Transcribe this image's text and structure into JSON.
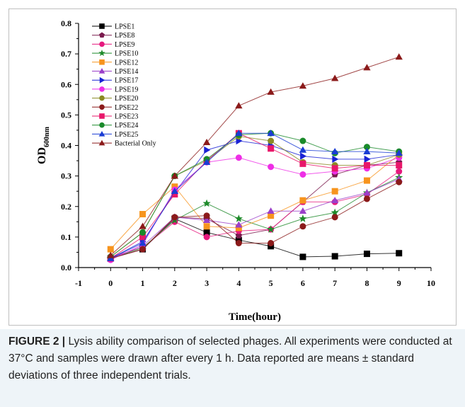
{
  "figure": {
    "caption_label": "FIGURE 2 |",
    "caption_text": " Lysis ability comparison of selected phages. All experiments were conducted at 37°C and samples were drawn after every 1 h. Data reported are means ± standard deviations of three independent trials."
  },
  "chart_data": {
    "type": "line",
    "xlabel": "Time(hour)",
    "ylabel": "OD",
    "ylabel_subscript": "600nm",
    "xlim": [
      -1,
      10
    ],
    "ylim": [
      0.0,
      0.8
    ],
    "x_ticks": [
      "-1",
      "0",
      "1",
      "2",
      "3",
      "4",
      "5",
      "6",
      "7",
      "8",
      "9",
      "10"
    ],
    "y_ticks": [
      "0.0",
      "0.1",
      "0.2",
      "0.3",
      "0.4",
      "0.5",
      "0.6",
      "0.7",
      "0.8"
    ],
    "grid": false,
    "legend_position": "top-left",
    "x": [
      0,
      1,
      2,
      3,
      4,
      5,
      6,
      7,
      8,
      9
    ],
    "series": [
      {
        "name": "LPSE1",
        "color": "#000000",
        "marker": "square",
        "values": [
          0.03,
          0.06,
          0.16,
          0.115,
          0.09,
          0.07,
          0.035,
          0.037,
          0.045,
          0.047
        ]
      },
      {
        "name": "LPSE8",
        "color": "#7a1a4d",
        "marker": "pentagon",
        "values": [
          0.03,
          0.06,
          0.165,
          0.16,
          0.105,
          0.125,
          0.215,
          0.305,
          0.335,
          0.345
        ]
      },
      {
        "name": "LPSE9",
        "color": "#e6197e",
        "marker": "circle",
        "values": [
          0.035,
          0.065,
          0.15,
          0.1,
          0.12,
          0.125,
          0.215,
          0.215,
          0.24,
          0.315
        ]
      },
      {
        "name": "LPSE10",
        "color": "#1e8a2a",
        "marker": "star",
        "values": [
          0.03,
          0.065,
          0.155,
          0.21,
          0.16,
          0.125,
          0.16,
          0.18,
          0.245,
          0.295
        ]
      },
      {
        "name": "LPSE12",
        "color": "#f7941d",
        "marker": "square",
        "values": [
          0.06,
          0.175,
          0.265,
          0.135,
          0.13,
          0.17,
          0.22,
          0.25,
          0.285,
          0.37
        ]
      },
      {
        "name": "LPSE14",
        "color": "#9b3fc9",
        "marker": "triangle-up",
        "values": [
          0.03,
          0.07,
          0.165,
          0.155,
          0.14,
          0.185,
          0.185,
          0.22,
          0.245,
          0.29
        ]
      },
      {
        "name": "LPSE17",
        "color": "#1a22d4",
        "marker": "triangle-right",
        "values": [
          0.03,
          0.085,
          0.245,
          0.385,
          0.415,
          0.4,
          0.365,
          0.355,
          0.355,
          0.37
        ]
      },
      {
        "name": "LPSE19",
        "color": "#ee2ee6",
        "marker": "circle",
        "values": [
          0.025,
          0.075,
          0.255,
          0.345,
          0.36,
          0.33,
          0.305,
          0.315,
          0.325,
          0.36
        ]
      },
      {
        "name": "LPSE20",
        "color": "#8a8a23",
        "marker": "circle",
        "values": [
          0.035,
          0.115,
          0.3,
          0.35,
          0.43,
          0.415,
          0.345,
          0.335,
          0.335,
          0.37
        ]
      },
      {
        "name": "LPSE22",
        "color": "#8b1a1a",
        "marker": "circle",
        "values": [
          0.03,
          0.06,
          0.165,
          0.17,
          0.08,
          0.08,
          0.135,
          0.165,
          0.225,
          0.28
        ]
      },
      {
        "name": "LPSE23",
        "color": "#e8176a",
        "marker": "square",
        "values": [
          0.03,
          0.1,
          0.24,
          0.35,
          0.44,
          0.39,
          0.34,
          0.325,
          0.335,
          0.335
        ]
      },
      {
        "name": "LPSE24",
        "color": "#1a8a2a",
        "marker": "circle",
        "values": [
          0.035,
          0.115,
          0.3,
          0.355,
          0.435,
          0.44,
          0.415,
          0.375,
          0.395,
          0.38
        ]
      },
      {
        "name": "LPSE25",
        "color": "#1a3cd4",
        "marker": "triangle-up",
        "values": [
          0.03,
          0.08,
          0.25,
          0.345,
          0.44,
          0.44,
          0.385,
          0.38,
          0.38,
          0.375
        ]
      },
      {
        "name": "Bacterial Only",
        "color": "#8b1a1a",
        "marker": "triangle-up",
        "values": [
          0.04,
          0.135,
          0.3,
          0.41,
          0.53,
          0.575,
          0.595,
          0.62,
          0.655,
          0.69
        ]
      }
    ]
  }
}
